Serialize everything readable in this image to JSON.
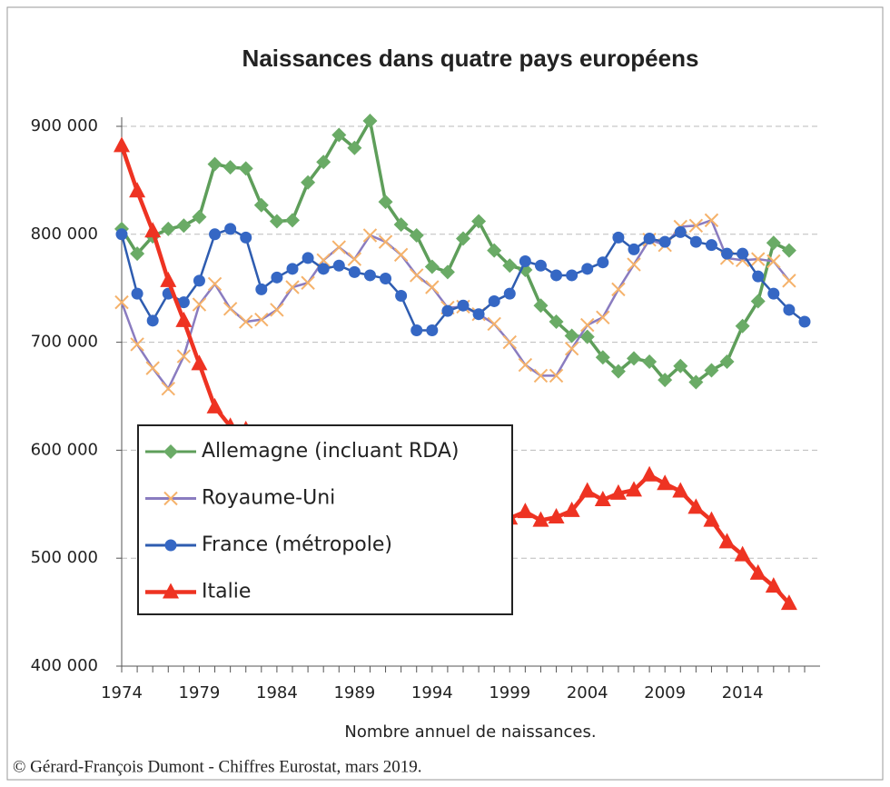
{
  "chart_data": {
    "type": "line",
    "title": "Naissances dans quatre pays européens",
    "x_label": "Nombre annuel de naissances.",
    "source": "© Gérard-François Dumont - Chiffres  Eurostat, mars 2019.",
    "x": [
      1974,
      1975,
      1976,
      1977,
      1978,
      1979,
      1980,
      1981,
      1982,
      1983,
      1984,
      1985,
      1986,
      1987,
      1988,
      1989,
      1990,
      1991,
      1992,
      1993,
      1994,
      1995,
      1996,
      1997,
      1998,
      1999,
      2000,
      2001,
      2002,
      2003,
      2004,
      2005,
      2006,
      2007,
      2008,
      2009,
      2010,
      2011,
      2012,
      2013,
      2014,
      2015,
      2016,
      2017,
      2018
    ],
    "xlim": [
      1974,
      2018
    ],
    "xticks": [
      1974,
      1979,
      1984,
      1989,
      1994,
      1999,
      2004,
      2009,
      2014
    ],
    "ylim": [
      400000,
      900000
    ],
    "yticks": [
      {
        "value": 400000,
        "label": "400 000"
      },
      {
        "value": 500000,
        "label": "500 000"
      },
      {
        "value": 600000,
        "label": "600 000"
      },
      {
        "value": 700000,
        "label": "700 000"
      },
      {
        "value": 800000,
        "label": "800 000"
      },
      {
        "value": 900000,
        "label": "900 000"
      }
    ],
    "grid": true,
    "legend": "left",
    "series": [
      {
        "name": "Allemagne (incluant RDA)",
        "color": "#5e9e5a",
        "marker": "diamond",
        "marker_color": "#6aab66",
        "values": [
          805000,
          782000,
          798000,
          805000,
          808000,
          816000,
          865000,
          862000,
          861000,
          827000,
          812000,
          813000,
          848000,
          867000,
          892000,
          880000,
          905000,
          830000,
          809000,
          799000,
          770000,
          765000,
          796000,
          812000,
          785000,
          771000,
          767000,
          734000,
          719000,
          706000,
          705000,
          686000,
          673000,
          685000,
          682000,
          665000,
          678000,
          663000,
          674000,
          682000,
          715000,
          738000,
          792000,
          785000,
          null
        ]
      },
      {
        "name": "Royaume-Uni",
        "color": "#8a7cc0",
        "marker": "x",
        "marker_color": "#f5b26b",
        "values": [
          737000,
          698000,
          676000,
          657000,
          687000,
          735000,
          754000,
          731000,
          719000,
          721000,
          730000,
          751000,
          755000,
          776000,
          788000,
          777000,
          799000,
          793000,
          781000,
          762000,
          751000,
          732000,
          733000,
          726000,
          717000,
          700000,
          679000,
          669000,
          669000,
          694000,
          716000,
          723000,
          749000,
          772000,
          795000,
          790000,
          807000,
          808000,
          813000,
          778000,
          776000,
          777000,
          775000,
          757000,
          null
        ]
      },
      {
        "name": "France (métropole)",
        "color": "#2e5cb0",
        "marker": "circle",
        "marker_color": "#3567c4",
        "values": [
          800000,
          745000,
          720000,
          745000,
          737000,
          757000,
          800000,
          805000,
          797000,
          749000,
          760000,
          768000,
          778000,
          768000,
          771000,
          765000,
          762000,
          759000,
          743000,
          711000,
          711000,
          729000,
          734000,
          726000,
          738000,
          745000,
          775000,
          771000,
          762000,
          762000,
          768000,
          774000,
          797000,
          786000,
          796000,
          793000,
          802000,
          793000,
          790000,
          782000,
          782000,
          761000,
          745000,
          730000,
          719000
        ]
      },
      {
        "name": "Italie",
        "color": "#ee3322",
        "marker": "triangle",
        "marker_color": "#ee3322",
        "values": [
          882000,
          840000,
          803000,
          757000,
          720000,
          680000,
          640000,
          622000,
          619000,
          601000,
          587000,
          577000,
          557000,
          552000,
          567000,
          561000,
          568000,
          563000,
          567000,
          550000,
          534000,
          526000,
          528000,
          533000,
          533000,
          537000,
          543000,
          535000,
          538000,
          544000,
          562000,
          554000,
          560000,
          563000,
          577000,
          569000,
          562000,
          547000,
          535000,
          515000,
          503000,
          486000,
          474000,
          458000,
          null
        ]
      }
    ]
  }
}
